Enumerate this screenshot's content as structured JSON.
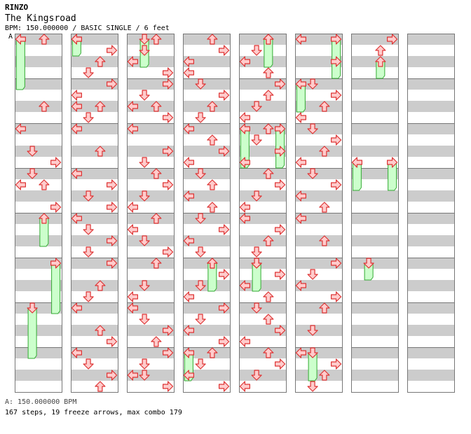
{
  "header": {
    "artist": "RINZO",
    "title": "The Kingsroad",
    "meta": "BPM: 150.000000 / BASIC SINGLE / 6 feet",
    "bpm_marker": "A"
  },
  "footer": {
    "bpm_legend": "A: 150.000000 BPM",
    "stats": "167 steps, 19 freeze arrows, max combo 179"
  },
  "colors": {
    "stripe": "#cccccc",
    "frame": "#777777",
    "arrow_fill": "#ffcccc",
    "arrow_stroke": "#dd3333",
    "freeze_fill": "#ccffcc",
    "freeze_stroke": "#33aa33",
    "bpm_line": "#5a6fd6"
  },
  "chart_data": {
    "type": "step-chart",
    "mode": "BASIC SINGLE",
    "lanes": [
      "left",
      "down",
      "up",
      "right"
    ],
    "measures_per_column": 8,
    "notes": [
      [
        0,
        3,
        2
      ],
      [
        0,
        6,
        1
      ],
      [
        0,
        6.5,
        0
      ],
      [
        0,
        7.5,
        3
      ],
      [
        0,
        0,
        2
      ],
      [
        0,
        4,
        0
      ],
      [
        0,
        5,
        1
      ],
      [
        0,
        5.5,
        3
      ],
      [
        0,
        6.5,
        2
      ],
      [
        1,
        0,
        0
      ],
      [
        1,
        0.5,
        3
      ],
      [
        1,
        1,
        2
      ],
      [
        1,
        1.5,
        1
      ],
      [
        1,
        2,
        3
      ],
      [
        1,
        2.5,
        0
      ],
      [
        1,
        3,
        2
      ],
      [
        1,
        3,
        0
      ],
      [
        1,
        3.5,
        1
      ],
      [
        1,
        4,
        0
      ],
      [
        1,
        5,
        2
      ],
      [
        1,
        6,
        0
      ],
      [
        1,
        6.5,
        3
      ],
      [
        1,
        7,
        1
      ],
      [
        1,
        7.5,
        3
      ],
      [
        1,
        8,
        0
      ],
      [
        1,
        8.5,
        1
      ],
      [
        1,
        9,
        3
      ],
      [
        1,
        9.5,
        1
      ],
      [
        1,
        10,
        3
      ],
      [
        1,
        11,
        2
      ],
      [
        1,
        11.5,
        1
      ],
      [
        1,
        12,
        0
      ],
      [
        1,
        13,
        2
      ],
      [
        1,
        13.5,
        3
      ],
      [
        1,
        14,
        0
      ],
      [
        1,
        14.5,
        1
      ],
      [
        1,
        15,
        3
      ],
      [
        1,
        15.5,
        2
      ],
      [
        2,
        0,
        2
      ],
      [
        2,
        0.5,
        1
      ],
      [
        2,
        1,
        0
      ],
      [
        2,
        1.5,
        3
      ],
      [
        2,
        2,
        3
      ],
      [
        2,
        2.5,
        1
      ],
      [
        2,
        3,
        0
      ],
      [
        2,
        3,
        2
      ],
      [
        2,
        3.5,
        3
      ],
      [
        2,
        4,
        0
      ],
      [
        2,
        5,
        3
      ],
      [
        2,
        5.5,
        1
      ],
      [
        2,
        6,
        2
      ],
      [
        2,
        6.5,
        3
      ],
      [
        2,
        7,
        1
      ],
      [
        2,
        7.5,
        0
      ],
      [
        2,
        8,
        2
      ],
      [
        2,
        8.5,
        0
      ],
      [
        2,
        9,
        1
      ],
      [
        2,
        9.5,
        3
      ],
      [
        2,
        10,
        2
      ],
      [
        2,
        11,
        1
      ],
      [
        2,
        11.5,
        0
      ],
      [
        2,
        12,
        0
      ],
      [
        2,
        12.5,
        1
      ],
      [
        2,
        13,
        3
      ],
      [
        2,
        13.5,
        2
      ],
      [
        2,
        14,
        3
      ],
      [
        2,
        14.5,
        1
      ],
      [
        2,
        15,
        0
      ],
      [
        2,
        15.5,
        3
      ],
      [
        2,
        15,
        1
      ],
      [
        3,
        0,
        2
      ],
      [
        3,
        0.5,
        3
      ],
      [
        3,
        1,
        0
      ],
      [
        3,
        1.5,
        0
      ],
      [
        3,
        2,
        1
      ],
      [
        3,
        2.5,
        3
      ],
      [
        3,
        3,
        2
      ],
      [
        3,
        3.5,
        1
      ],
      [
        3,
        4,
        0
      ],
      [
        3,
        4.5,
        2
      ],
      [
        3,
        5,
        3
      ],
      [
        3,
        5.5,
        0
      ],
      [
        3,
        6,
        1
      ],
      [
        3,
        6.5,
        2
      ],
      [
        3,
        7,
        0
      ],
      [
        3,
        7.5,
        2
      ],
      [
        3,
        8,
        1
      ],
      [
        3,
        8.5,
        3
      ],
      [
        3,
        9,
        0
      ],
      [
        3,
        9.5,
        1
      ],
      [
        3,
        10,
        2
      ],
      [
        3,
        10.5,
        3
      ],
      [
        3,
        11,
        1
      ],
      [
        3,
        11.5,
        0
      ],
      [
        3,
        12,
        3
      ],
      [
        3,
        12.5,
        1
      ],
      [
        3,
        13,
        0
      ],
      [
        3,
        13.5,
        3
      ],
      [
        3,
        14,
        2
      ],
      [
        3,
        14.5,
        1
      ],
      [
        3,
        15,
        0
      ],
      [
        3,
        15.5,
        3
      ],
      [
        4,
        0,
        2
      ],
      [
        4,
        0.5,
        1
      ],
      [
        4,
        1,
        0
      ],
      [
        4,
        1.5,
        2
      ],
      [
        4,
        2,
        3
      ],
      [
        4,
        2.5,
        2
      ],
      [
        4,
        3,
        1
      ],
      [
        4,
        3.5,
        0
      ],
      [
        4,
        4,
        2
      ],
      [
        4,
        4.5,
        1
      ],
      [
        4,
        5,
        3
      ],
      [
        4,
        5.5,
        0
      ],
      [
        4,
        6,
        2
      ],
      [
        4,
        6.5,
        3
      ],
      [
        4,
        7,
        1
      ],
      [
        4,
        7.5,
        0
      ],
      [
        4,
        8,
        0
      ],
      [
        4,
        8.5,
        3
      ],
      [
        4,
        9,
        2
      ],
      [
        4,
        9.5,
        1
      ],
      [
        4,
        10,
        1
      ],
      [
        4,
        10.5,
        3
      ],
      [
        4,
        11,
        0
      ],
      [
        4,
        11.5,
        2
      ],
      [
        4,
        12,
        1
      ],
      [
        4,
        12.5,
        2
      ],
      [
        4,
        13,
        3
      ],
      [
        4,
        13.5,
        0
      ],
      [
        4,
        14,
        2
      ],
      [
        4,
        14.5,
        3
      ],
      [
        4,
        15,
        1
      ],
      [
        4,
        15.5,
        0
      ],
      [
        5,
        0,
        0
      ],
      [
        5,
        1,
        3
      ],
      [
        5,
        2,
        1
      ],
      [
        5,
        2.5,
        3
      ],
      [
        5,
        3,
        2
      ],
      [
        5,
        3.5,
        0
      ],
      [
        5,
        4,
        1
      ],
      [
        5,
        4.5,
        3
      ],
      [
        5,
        5,
        2
      ],
      [
        5,
        5.5,
        0
      ],
      [
        5,
        6,
        1
      ],
      [
        5,
        6.5,
        3
      ],
      [
        5,
        7,
        0
      ],
      [
        5,
        7.5,
        2
      ],
      [
        5,
        8,
        0
      ],
      [
        5,
        9,
        2
      ],
      [
        5,
        10,
        3
      ],
      [
        5,
        10.5,
        1
      ],
      [
        5,
        11,
        0
      ],
      [
        5,
        11.5,
        3
      ],
      [
        5,
        12,
        2
      ],
      [
        5,
        13,
        1
      ],
      [
        5,
        14,
        0
      ],
      [
        5,
        14.5,
        3
      ],
      [
        5,
        15,
        2
      ],
      [
        5,
        15.5,
        1
      ],
      [
        6,
        0,
        3
      ],
      [
        6,
        0.5,
        2
      ]
    ],
    "freezes": [
      [
        0,
        8,
        9,
        2
      ],
      [
        0,
        12,
        14,
        1
      ],
      [
        0,
        10,
        12,
        3
      ],
      [
        0,
        0,
        2,
        0
      ],
      [
        1,
        0,
        0.5,
        0
      ],
      [
        2,
        0,
        1,
        1
      ],
      [
        3,
        10,
        11,
        2
      ],
      [
        3,
        14,
        15,
        0
      ],
      [
        4,
        4,
        5.5,
        0
      ],
      [
        4,
        4,
        5.5,
        3
      ],
      [
        4,
        10,
        11,
        1
      ],
      [
        5,
        14,
        15,
        1
      ],
      [
        5,
        0,
        1.5,
        3
      ],
      [
        5,
        2,
        3,
        0
      ],
      [
        6,
        1,
        1.5,
        2
      ],
      [
        6,
        5.5,
        6.5,
        0
      ],
      [
        6,
        5.5,
        6.5,
        3
      ],
      [
        4,
        0,
        1,
        2
      ],
      [
        6,
        10,
        10.5,
        1
      ]
    ]
  }
}
